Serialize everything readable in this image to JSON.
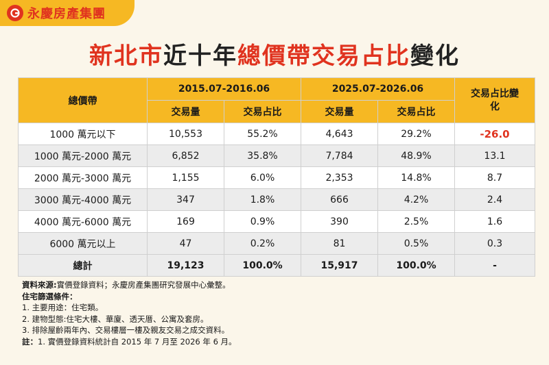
{
  "brand": {
    "name": "永慶房產集團"
  },
  "title": {
    "part1": "新北市",
    "part2": "近十年",
    "part3": "總價帶交易占比",
    "part4": "變化"
  },
  "table": {
    "col_price_band": "總價帶",
    "period1": "2015.07-2016.06",
    "period2": "2025.07-2026.06",
    "col_change": "交易占比變化",
    "sub_volume": "交易量",
    "sub_share": "交易占比",
    "rows": [
      {
        "band": "1000 萬元以下",
        "v1": "10,553",
        "s1": "55.2%",
        "v2": "4,643",
        "s2": "29.2%",
        "change": "-26.0"
      },
      {
        "band": "1000 萬元-2000 萬元",
        "v1": "6,852",
        "s1": "35.8%",
        "v2": "7,784",
        "s2": "48.9%",
        "change": "13.1"
      },
      {
        "band": "2000 萬元-3000 萬元",
        "v1": "1,155",
        "s1": "6.0%",
        "v2": "2,353",
        "s2": "14.8%",
        "change": "8.7"
      },
      {
        "band": "3000 萬元-4000 萬元",
        "v1": "347",
        "s1": "1.8%",
        "v2": "666",
        "s2": "4.2%",
        "change": "2.4"
      },
      {
        "band": "4000 萬元-6000 萬元",
        "v1": "169",
        "s1": "0.9%",
        "v2": "390",
        "s2": "2.5%",
        "change": "1.6"
      },
      {
        "band": "6000 萬元以上",
        "v1": "47",
        "s1": "0.2%",
        "v2": "81",
        "s2": "0.5%",
        "change": "0.3"
      }
    ],
    "total": {
      "band": "總計",
      "v1": "19,123",
      "s1": "100.0%",
      "v2": "15,917",
      "s2": "100.0%",
      "change": "-"
    }
  },
  "notes": {
    "source_label": "資料來源:",
    "source_text": "實價登錄資料；永慶房產集團研究發展中心彙整。",
    "filter_label": "住宅篩選條件：",
    "items": [
      "1. 主要用途：住宅類。",
      "2. 建物型態:住宅大樓、華廈、透天厝、公寓及套房。",
      "3. 排除屋齡兩年內、交易樓層一樓及親友交易之成交資料。"
    ],
    "note_label": "註：",
    "note_text": "1. 實價登錄資料統計自 2015 年 7 月至 2026 年 6 月。"
  },
  "colors": {
    "accent": "#f6b823",
    "red": "#e0331f",
    "background": "#fbf6ea"
  }
}
